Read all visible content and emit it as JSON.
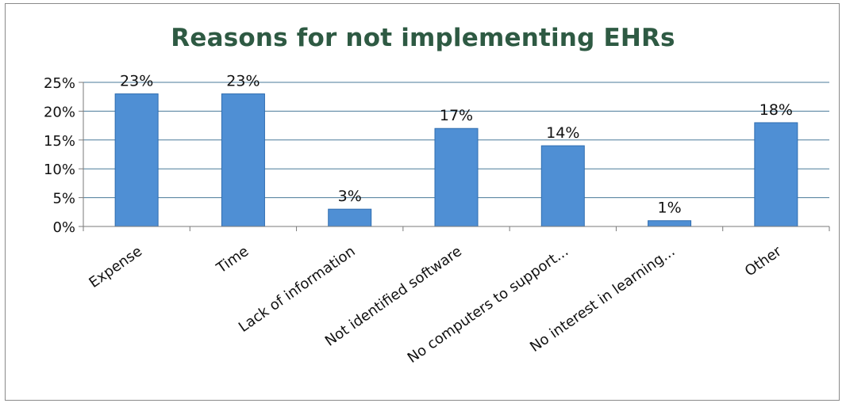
{
  "chart_data": {
    "type": "bar",
    "title": "Reasons for not implementing EHRs",
    "categories": [
      "Expense",
      "Time",
      "Lack of information",
      "Not identified software",
      "No computers to support...",
      "No interest in learning...",
      "Other"
    ],
    "values": [
      23,
      23,
      3,
      17,
      14,
      1,
      18
    ],
    "data_labels": [
      "23%",
      "23%",
      "3%",
      "17%",
      "14%",
      "1%",
      "18%"
    ],
    "y_ticks": [
      0,
      5,
      10,
      15,
      20,
      25
    ],
    "y_tick_labels": [
      "0%",
      "5%",
      "10%",
      "15%",
      "20%",
      "25%"
    ],
    "ylim": [
      0,
      25
    ],
    "grid": true,
    "legend": "none",
    "bar_color": "#4f8fd4",
    "bar_edge_color": "#2f6db0",
    "title_color": "#2e5a43",
    "grid_color": "#4a7a9a"
  }
}
